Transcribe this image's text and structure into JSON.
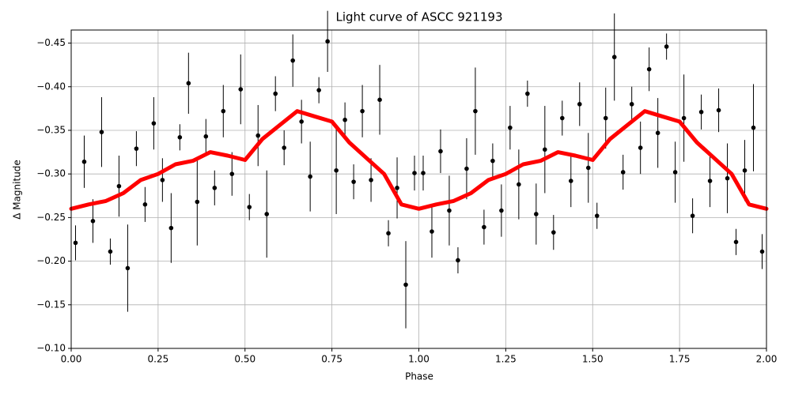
{
  "chart_data": {
    "type": "scatter",
    "title": "Light curve of ASCC 921193",
    "x_label": "Phase",
    "y_label": "Δ Magnitude",
    "xlim": [
      0,
      2
    ],
    "ylim": [
      -0.1,
      -0.465
    ],
    "xticks": [
      {
        "value": 0,
        "label": "0.00"
      },
      {
        "value": 0.25,
        "label": "0.25"
      },
      {
        "value": 0.5,
        "label": "0.50"
      },
      {
        "value": 0.75,
        "label": "0.75"
      },
      {
        "value": 1,
        "label": "1.00"
      },
      {
        "value": 1.25,
        "label": "1.25"
      },
      {
        "value": 1.5,
        "label": "1.50"
      },
      {
        "value": 1.75,
        "label": "1.75"
      },
      {
        "value": 2,
        "label": "2.00"
      }
    ],
    "yticks": [
      {
        "value": -0.45,
        "label": "−0.45"
      },
      {
        "value": -0.4,
        "label": "−0.40"
      },
      {
        "value": -0.35,
        "label": "−0.35"
      },
      {
        "value": -0.3,
        "label": "−0.30"
      },
      {
        "value": -0.25,
        "label": "−0.25"
      },
      {
        "value": -0.2,
        "label": "−0.20"
      },
      {
        "value": -0.15,
        "label": "−0.15"
      },
      {
        "value": -0.1,
        "label": "−0.10"
      }
    ],
    "grid": true,
    "points": {
      "color": "#000000",
      "x": [
        0.0125,
        0.0375,
        0.0625,
        0.0875,
        0.1125,
        0.1375,
        0.1625,
        0.1875,
        0.2125,
        0.2375,
        0.2625,
        0.2875,
        0.3125,
        0.3375,
        0.3625,
        0.3875,
        0.4125,
        0.4375,
        0.4625,
        0.4875,
        0.5125,
        0.5375,
        0.5625,
        0.5875,
        0.6125,
        0.6375,
        0.6625,
        0.6875,
        0.7125,
        0.7375,
        0.7625,
        0.7875,
        0.8125,
        0.8375,
        0.8625,
        0.8875,
        0.9125,
        0.9375,
        0.9625,
        0.9875,
        1.0125,
        1.0375,
        1.0625,
        1.0875,
        1.1125,
        1.1375,
        1.1625,
        1.1875,
        1.2125,
        1.2375,
        1.2625,
        1.2875,
        1.3125,
        1.3375,
        1.3625,
        1.3875,
        1.4125,
        1.4375,
        1.4625,
        1.4875,
        1.5125,
        1.5375,
        1.5625,
        1.5875,
        1.6125,
        1.6375,
        1.6625,
        1.6875,
        1.7125,
        1.7375,
        1.7625,
        1.7875,
        1.8125,
        1.8375,
        1.8625,
        1.8875,
        1.9125,
        1.9375,
        1.9625,
        1.9875
      ],
      "values": [
        -0.221,
        -0.314,
        -0.246,
        -0.348,
        -0.211,
        -0.286,
        -0.192,
        -0.329,
        -0.265,
        -0.358,
        -0.293,
        -0.238,
        -0.342,
        -0.404,
        -0.268,
        -0.343,
        -0.284,
        -0.372,
        -0.3,
        -0.397,
        -0.262,
        -0.344,
        -0.254,
        -0.392,
        -0.33,
        -0.43,
        -0.36,
        -0.297,
        -0.396,
        -0.452,
        -0.304,
        -0.362,
        -0.291,
        -0.372,
        -0.293,
        -0.385,
        -0.232,
        -0.284,
        -0.173,
        -0.301,
        -0.301,
        -0.234,
        -0.326,
        -0.258,
        -0.201,
        -0.306,
        -0.372,
        -0.239,
        -0.315,
        -0.258,
        -0.353,
        -0.288,
        -0.392,
        -0.254,
        -0.328,
        -0.233,
        -0.364,
        -0.292,
        -0.38,
        -0.307,
        -0.252,
        -0.364,
        -0.434,
        -0.302,
        -0.38,
        -0.33,
        -0.42,
        -0.347,
        -0.446,
        -0.302,
        -0.364,
        -0.252,
        -0.371,
        -0.292,
        -0.373,
        -0.295,
        -0.222,
        -0.304,
        -0.353,
        -0.211
      ],
      "errors": [
        0.02,
        0.03,
        0.025,
        0.04,
        0.015,
        0.035,
        0.05,
        0.02,
        0.02,
        0.03,
        0.025,
        0.04,
        0.015,
        0.035,
        0.05,
        0.02,
        0.02,
        0.03,
        0.025,
        0.04,
        0.015,
        0.035,
        0.05,
        0.02,
        0.02,
        0.03,
        0.025,
        0.04,
        0.015,
        0.035,
        0.05,
        0.02,
        0.02,
        0.03,
        0.025,
        0.04,
        0.015,
        0.035,
        0.05,
        0.02,
        0.02,
        0.03,
        0.025,
        0.04,
        0.015,
        0.035,
        0.05,
        0.02,
        0.02,
        0.03,
        0.025,
        0.04,
        0.015,
        0.035,
        0.05,
        0.02,
        0.02,
        0.03,
        0.025,
        0.04,
        0.015,
        0.035,
        0.05,
        0.02,
        0.02,
        0.03,
        0.025,
        0.04,
        0.015,
        0.035,
        0.05,
        0.02,
        0.02,
        0.03,
        0.025,
        0.04,
        0.015,
        0.035,
        0.05,
        0.02
      ]
    },
    "smooth": {
      "color": "#ff0000",
      "x": [
        0,
        0.05,
        0.1,
        0.15,
        0.2,
        0.25,
        0.3,
        0.35,
        0.4,
        0.45,
        0.5,
        0.55,
        0.6,
        0.65,
        0.7,
        0.75,
        0.8,
        0.85,
        0.9,
        0.95,
        1,
        1.05,
        1.1,
        1.15,
        1.2,
        1.25,
        1.3,
        1.35,
        1.4,
        1.45,
        1.5,
        1.55,
        1.6,
        1.65,
        1.7,
        1.75,
        1.8,
        1.85,
        1.9,
        1.95,
        2
      ],
      "values": [
        -0.26,
        -0.265,
        -0.269,
        -0.278,
        -0.293,
        -0.3,
        -0.311,
        -0.315,
        -0.325,
        -0.321,
        -0.316,
        -0.34,
        -0.356,
        -0.372,
        -0.366,
        -0.36,
        -0.336,
        -0.318,
        -0.3,
        -0.265,
        -0.26,
        -0.265,
        -0.269,
        -0.278,
        -0.293,
        -0.3,
        -0.311,
        -0.315,
        -0.325,
        -0.321,
        -0.316,
        -0.34,
        -0.356,
        -0.372,
        -0.366,
        -0.36,
        -0.336,
        -0.318,
        -0.3,
        -0.265,
        -0.26
      ]
    }
  }
}
